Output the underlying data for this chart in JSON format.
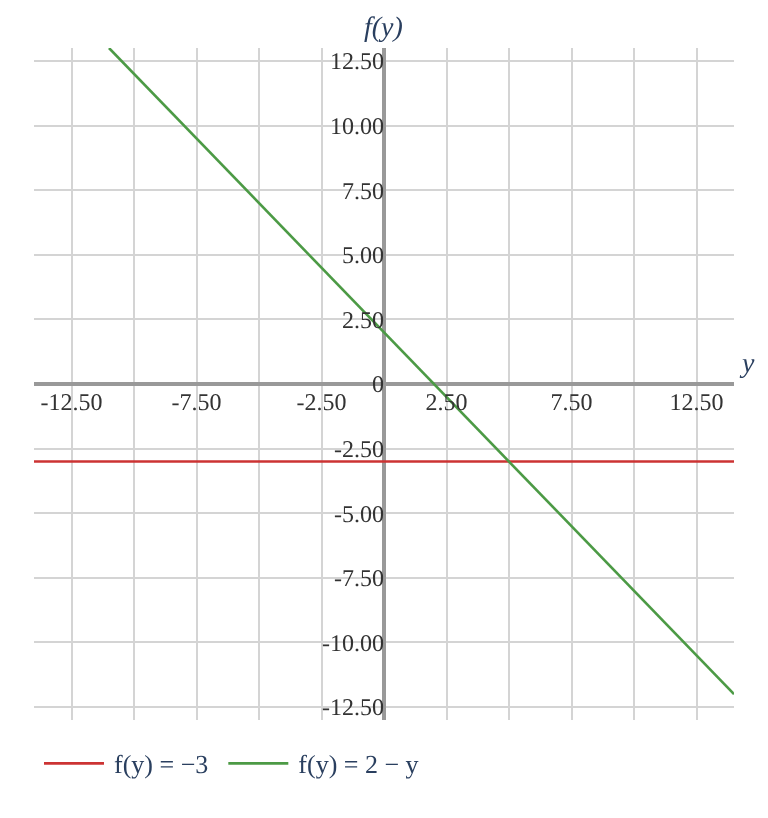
{
  "chart_data": {
    "type": "line",
    "xlabel": "y",
    "ylabel": "f(y)",
    "xlim": [
      -14,
      14
    ],
    "ylim": [
      -13,
      13
    ],
    "xticks": [
      {
        "value": -12.5,
        "label": "-12.50"
      },
      {
        "value": -10,
        "label": null
      },
      {
        "value": -7.5,
        "label": "-7.50"
      },
      {
        "value": -5,
        "label": null
      },
      {
        "value": -2.5,
        "label": "-2.50"
      },
      {
        "value": 0,
        "label": null
      },
      {
        "value": 2.5,
        "label": "2.50"
      },
      {
        "value": 5,
        "label": null
      },
      {
        "value": 7.5,
        "label": "7.50"
      },
      {
        "value": 10,
        "label": null
      },
      {
        "value": 12.5,
        "label": "12.50"
      }
    ],
    "yticks": [
      {
        "value": -12.5,
        "label": "-12.50"
      },
      {
        "value": -10,
        "label": "-10.00"
      },
      {
        "value": -7.5,
        "label": "-7.50"
      },
      {
        "value": -5,
        "label": "-5.00"
      },
      {
        "value": -2.5,
        "label": "-2.50"
      },
      0,
      {
        "value": 2.5,
        "label": "2.50"
      },
      {
        "value": 5,
        "label": "5.00"
      },
      {
        "value": 7.5,
        "label": "7.50"
      },
      {
        "value": 10,
        "label": "10.00"
      },
      {
        "value": 12.5,
        "label": "12.50"
      }
    ],
    "series": [
      {
        "name": "f(y) = −3",
        "color": "#cc3333",
        "x": [
          -14,
          14
        ],
        "values": [
          -3,
          -3
        ]
      },
      {
        "name": "f(y) = 2 − y",
        "color": "#4c9a45",
        "x": [
          -11,
          14
        ],
        "values": [
          13,
          -12
        ]
      }
    ],
    "grid": true,
    "legend": "bottom",
    "marker": "none",
    "line_style": "solid"
  }
}
